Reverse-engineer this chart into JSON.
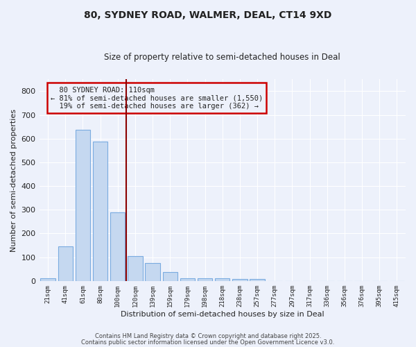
{
  "title": "80, SYDNEY ROAD, WALMER, DEAL, CT14 9XD",
  "subtitle": "Size of property relative to semi-detached houses in Deal",
  "xlabel": "Distribution of semi-detached houses by size in Deal",
  "ylabel": "Number of semi-detached properties",
  "bar_labels": [
    "21sqm",
    "41sqm",
    "61sqm",
    "80sqm",
    "100sqm",
    "120sqm",
    "139sqm",
    "159sqm",
    "179sqm",
    "198sqm",
    "218sqm",
    "238sqm",
    "257sqm",
    "277sqm",
    "297sqm",
    "317sqm",
    "336sqm",
    "356sqm",
    "376sqm",
    "395sqm",
    "415sqm"
  ],
  "bar_values": [
    10,
    145,
    637,
    587,
    290,
    105,
    76,
    38,
    12,
    10,
    12,
    8,
    8,
    0,
    0,
    0,
    0,
    0,
    0,
    0,
    0
  ],
  "bar_color": "#c5d8f0",
  "bar_edge_color": "#7aabe0",
  "property_line_color": "#8b0000",
  "property_sqm": 110,
  "property_label": "80 SYDNEY ROAD: 110sqm",
  "smaller_pct": 81,
  "smaller_count": 1550,
  "larger_pct": 19,
  "larger_count": 362,
  "annotation_box_color": "#cc0000",
  "bg_color": "#edf1fb",
  "grid_color": "#ffffff",
  "footnote1": "Contains HM Land Registry data © Crown copyright and database right 2025.",
  "footnote2": "Contains public sector information licensed under the Open Government Licence v3.0.",
  "ylim": [
    0,
    850
  ],
  "yticks": [
    0,
    100,
    200,
    300,
    400,
    500,
    600,
    700,
    800
  ]
}
